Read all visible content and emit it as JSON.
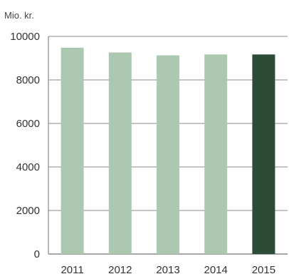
{
  "chart_data": {
    "type": "bar",
    "unit_label": "Mio. kr.",
    "title": "",
    "xlabel": "",
    "ylabel": "",
    "categories": [
      "2011",
      "2012",
      "2013",
      "2014",
      "2015"
    ],
    "values": [
      9480,
      9260,
      9130,
      9170,
      9170
    ],
    "y_ticks": [
      "0",
      "2000",
      "4000",
      "6000",
      "8000",
      "10000"
    ],
    "ylim": [
      0,
      10000
    ],
    "grid": true,
    "colors": {
      "bar": "#adc8b0",
      "bar_highlight": "#2d4c38",
      "grid": "#888888",
      "text": "#333333"
    },
    "highlight_index": 4
  }
}
